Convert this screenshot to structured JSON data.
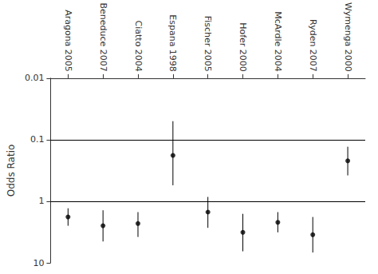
{
  "chart_data": {
    "type": "errorbar",
    "categories": [
      "Aragona 2005",
      "Beneduce 2007",
      "Ciatto 2004",
      "Espana 1998",
      "Fischer 2005",
      "Hofer 2000",
      "McArdle 2004",
      "Ryden 2007",
      "Wymenga 2000"
    ],
    "values": [
      1.8,
      2.5,
      2.3,
      0.18,
      1.5,
      3.2,
      2.2,
      3.5,
      0.22
    ],
    "ci_lower": [
      1.3,
      1.4,
      1.5,
      0.05,
      0.85,
      1.6,
      1.5,
      1.8,
      0.13
    ],
    "ci_upper": [
      2.5,
      4.5,
      3.8,
      0.55,
      2.7,
      6.5,
      3.2,
      6.8,
      0.38
    ],
    "hlines": [
      0.1,
      1.0
    ],
    "ylabel": "Odds Ratio",
    "ylim": [
      10,
      0.01
    ],
    "yticks": [
      0.01,
      0.1,
      1,
      10
    ],
    "log": "y",
    "grid": false,
    "color": "black"
  }
}
